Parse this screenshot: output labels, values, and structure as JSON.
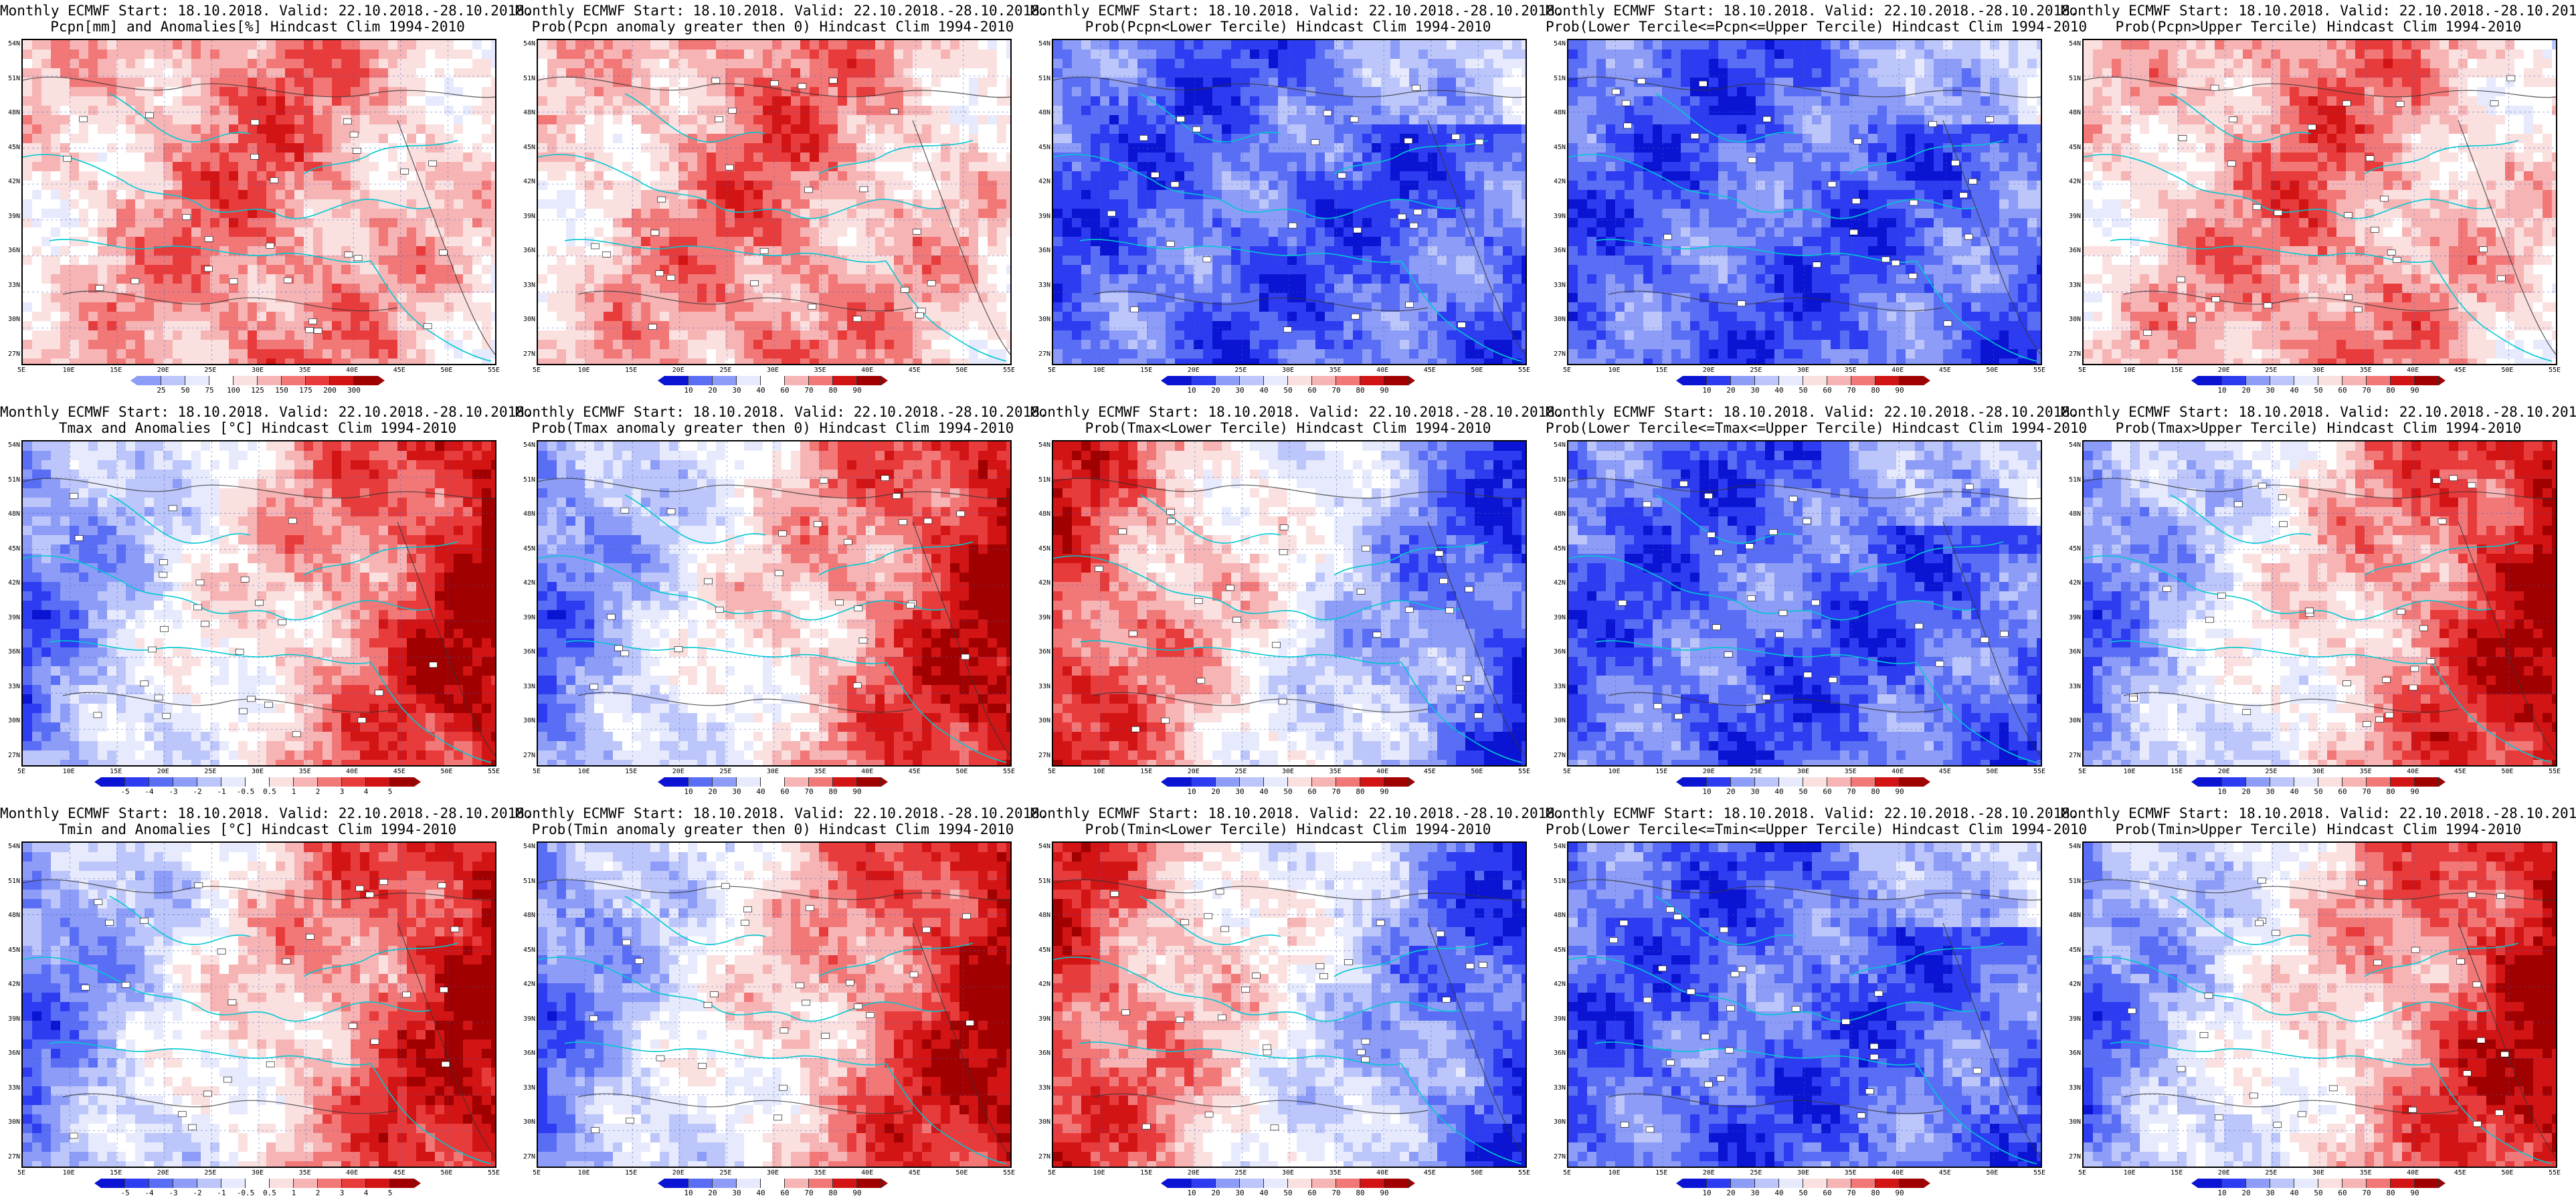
{
  "panels": [
    {
      "line1": "Monthly ECMWF Start: 18.10.2018. Valid: 22.10.2018.-28.10.2018.",
      "line2": "Pcpn[mm] and Anomalies[%] Hindcast Clim 1994-2010",
      "kind": "anom",
      "scheme": "red",
      "cbar_labels": [
        "25",
        "50",
        "75",
        "100",
        "125",
        "150",
        "175",
        "200",
        "300"
      ]
    },
    {
      "line1": "Monthly ECMWF Start: 18.10.2018. Valid: 22.10.2018.-28.10.2018.",
      "line2": "Prob(Pcpn anomaly greater then 0) Hindcast Clim 1994-2010",
      "kind": "prob",
      "scheme": "red",
      "cbar_labels": [
        "10",
        "20",
        "30",
        "40",
        "60",
        "70",
        "80",
        "90"
      ]
    },
    {
      "line1": "Monthly ECMWF Start: 18.10.2018. Valid: 22.10.2018.-28.10.2018.",
      "line2": "Prob(Pcpn<Lower Tercile) Hindcast Clim 1994-2010",
      "kind": "prob",
      "scheme": "blue",
      "cbar_labels": [
        "10",
        "20",
        "30",
        "40",
        "50",
        "60",
        "70",
        "80",
        "90"
      ]
    },
    {
      "line1": "Monthly ECMWF Start: 18.10.2018. Valid: 22.10.2018.-28.10.2018.",
      "line2": "Prob(Lower Tercile<=Pcpn<=Upper Tercile) Hindcast Clim 1994-2010",
      "kind": "prob",
      "scheme": "blue",
      "cbar_labels": [
        "10",
        "20",
        "30",
        "40",
        "50",
        "60",
        "70",
        "80",
        "90"
      ]
    },
    {
      "line1": "Monthly ECMWF Start: 18.10.2018. Valid: 22.10.2018.-28.10.2018.",
      "line2": "Prob(Pcpn>Upper Tercile) Hindcast Clim 1994-2010",
      "kind": "prob",
      "scheme": "red",
      "cbar_labels": [
        "10",
        "20",
        "30",
        "40",
        "50",
        "60",
        "70",
        "80",
        "90"
      ]
    },
    {
      "line1": "Monthly ECMWF Start: 18.10.2018. Valid: 22.10.2018.-28.10.2018.",
      "line2": "Tmax and Anomalies [°C] Hindcast Clim 1994-2010",
      "kind": "anom",
      "scheme": "east",
      "cbar_labels": [
        "-5",
        "-4",
        "-3",
        "-2",
        "-1",
        "-0.5",
        "0.5",
        "1",
        "2",
        "3",
        "4",
        "5"
      ]
    },
    {
      "line1": "Monthly ECMWF Start: 18.10.2018. Valid: 22.10.2018.-28.10.2018.",
      "line2": "Prob(Tmax anomaly greater then 0) Hindcast Clim 1994-2010",
      "kind": "prob",
      "scheme": "east",
      "cbar_labels": [
        "10",
        "20",
        "30",
        "40",
        "60",
        "70",
        "80",
        "90"
      ]
    },
    {
      "line1": "Monthly ECMWF Start: 18.10.2018. Valid: 22.10.2018.-28.10.2018.",
      "line2": "Prob(Tmax<Lower Tercile) Hindcast Clim 1994-2010",
      "kind": "prob",
      "scheme": "west",
      "cbar_labels": [
        "10",
        "20",
        "30",
        "40",
        "50",
        "60",
        "70",
        "80",
        "90"
      ]
    },
    {
      "line1": "Monthly ECMWF Start: 18.10.2018. Valid: 22.10.2018.-28.10.2018.",
      "line2": "Prob(Lower Tercile<=Tmax<=Upper Tercile) Hindcast Clim 1994-2010",
      "kind": "prob",
      "scheme": "blue",
      "cbar_labels": [
        "10",
        "20",
        "30",
        "40",
        "50",
        "60",
        "70",
        "80",
        "90"
      ]
    },
    {
      "line1": "Monthly ECMWF Start: 18.10.2018. Valid: 22.10.2018.-28.10.2018.",
      "line2": "Prob(Tmax>Upper Tercile) Hindcast Clim 1994-2010",
      "kind": "prob",
      "scheme": "east",
      "cbar_labels": [
        "10",
        "20",
        "30",
        "40",
        "50",
        "60",
        "70",
        "80",
        "90"
      ]
    },
    {
      "line1": "Monthly ECMWF Start: 18.10.2018. Valid: 22.10.2018.-28.10.2018.",
      "line2": "Tmin and Anomalies [°C] Hindcast Clim 1994-2010",
      "kind": "anom",
      "scheme": "east",
      "cbar_labels": [
        "-5",
        "-4",
        "-3",
        "-2",
        "-1",
        "-0.5",
        "0.5",
        "1",
        "2",
        "3",
        "4",
        "5"
      ]
    },
    {
      "line1": "Monthly ECMWF Start: 18.10.2018. Valid: 22.10.2018.-28.10.2018.",
      "line2": "Prob(Tmin anomaly greater then 0) Hindcast Clim 1994-2010",
      "kind": "prob",
      "scheme": "east",
      "cbar_labels": [
        "10",
        "20",
        "30",
        "40",
        "60",
        "70",
        "80",
        "90"
      ]
    },
    {
      "line1": "Monthly ECMWF Start: 18.10.2018. Valid: 22.10.2018.-28.10.2018.",
      "line2": "Prob(Tmin<Lower Tercile) Hindcast Clim 1994-2010",
      "kind": "prob",
      "scheme": "west",
      "cbar_labels": [
        "10",
        "20",
        "30",
        "40",
        "50",
        "60",
        "70",
        "80",
        "90"
      ]
    },
    {
      "line1": "Monthly ECMWF Start: 18.10.2018. Valid: 22.10.2018.-28.10.2018.",
      "line2": "Prob(Lower Tercile<=Tmin<=Upper Tercile) Hindcast Clim 1994-2010",
      "kind": "prob",
      "scheme": "blue",
      "cbar_labels": [
        "10",
        "20",
        "30",
        "40",
        "50",
        "60",
        "70",
        "80",
        "90"
      ]
    },
    {
      "line1": "Monthly ECMWF Start: 18.10.2018. Valid: 22.10.2018.-28.10.2018.",
      "line2": "Prob(Tmin>Upper Tercile) Hindcast Clim 1994-2010",
      "kind": "prob",
      "scheme": "east",
      "cbar_labels": [
        "10",
        "20",
        "30",
        "40",
        "50",
        "60",
        "70",
        "80",
        "90"
      ]
    }
  ],
  "lat_labels": [
    "54N",
    "51N",
    "48N",
    "45N",
    "42N",
    "39N",
    "36N",
    "33N",
    "30N",
    "27N"
  ],
  "lon_labels": [
    "5E",
    "10E",
    "15E",
    "20E",
    "25E",
    "30E",
    "35E",
    "40E",
    "45E",
    "50E",
    "55E"
  ],
  "colors": {
    "diverging": [
      "#0a14d2",
      "#2d3cf0",
      "#5a6ef5",
      "#8c9cf7",
      "#bcc6fa",
      "#e6eafc",
      "#ffffff",
      "#fbe0e0",
      "#f7b4b4",
      "#f27878",
      "#e83c3c",
      "#d21414",
      "#a00000"
    ],
    "coast": "#00c8d2",
    "contour": "#333333"
  }
}
